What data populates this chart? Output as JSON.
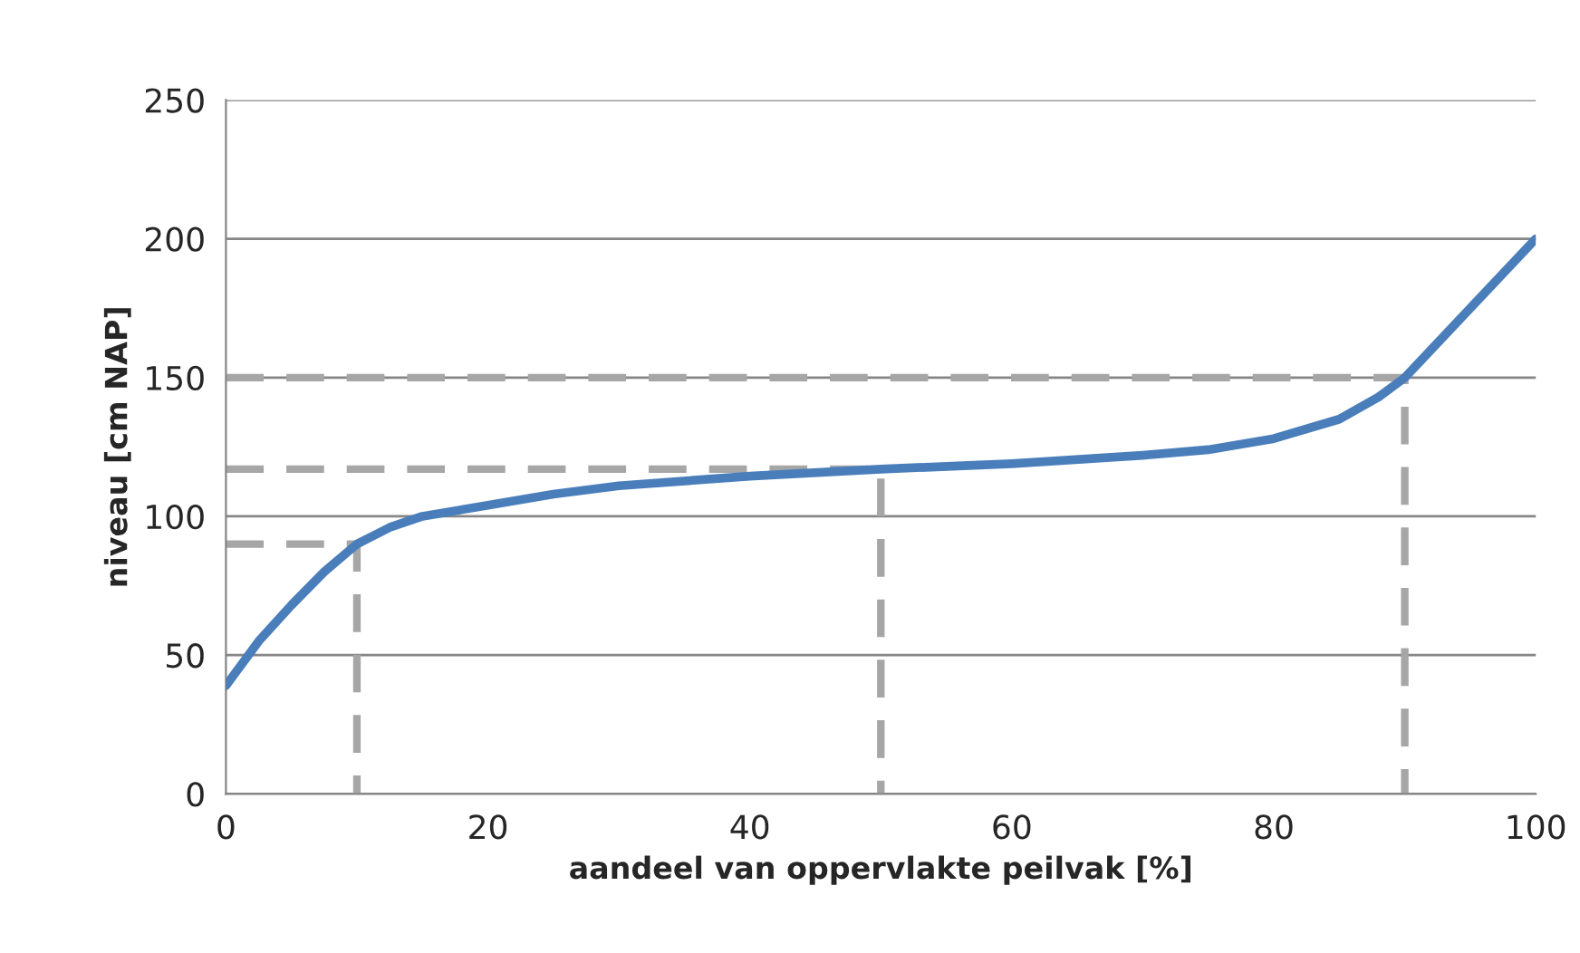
{
  "chart_data": {
    "type": "line",
    "xlabel": "aandeel van oppervlakte peilvak [%]",
    "ylabel": "niveau [cm NAP]",
    "xlim": [
      0,
      100
    ],
    "xticks": [
      0,
      20,
      40,
      60,
      80,
      100
    ],
    "ylim": [
      0,
      250
    ],
    "yticks": [
      0,
      50,
      100,
      150,
      200,
      250
    ],
    "grid": "y",
    "legend": false,
    "marker": "none",
    "series": [
      {
        "color": "#4a7ebb",
        "line_style": "solid",
        "x": [
          0,
          2.5,
          5,
          7.5,
          10,
          12.5,
          15,
          20,
          25,
          30,
          40,
          50,
          60,
          70,
          75,
          80,
          85,
          88,
          90,
          93,
          96,
          100
        ],
        "values": [
          39,
          55,
          68,
          80,
          90,
          96,
          100,
          104,
          108,
          111,
          114.5,
          117,
          119,
          122,
          124,
          128,
          135,
          143,
          150,
          165,
          180,
          200
        ]
      },
      {
        "color": "#a6a6a6",
        "line_style": "dashed",
        "x": [
          0,
          10,
          10
        ],
        "values": [
          90,
          90,
          0
        ]
      },
      {
        "color": "#a6a6a6",
        "line_style": "dashed",
        "x": [
          0,
          50,
          50
        ],
        "values": [
          117,
          117,
          0
        ]
      },
      {
        "color": "#a6a6a6",
        "line_style": "dashed",
        "x": [
          0,
          90,
          90
        ],
        "values": [
          150,
          150,
          0
        ]
      }
    ]
  }
}
